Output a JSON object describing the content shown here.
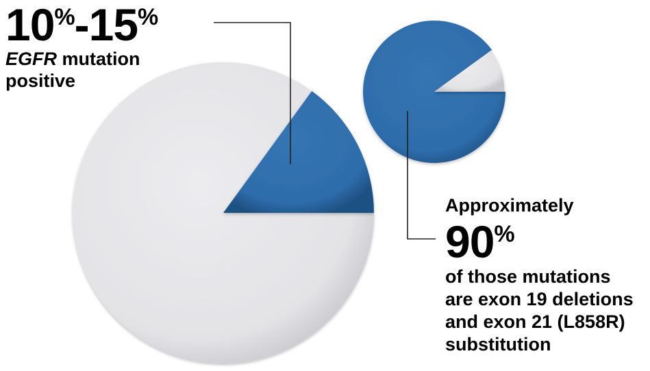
{
  "colors": {
    "blue": "#2f6fad",
    "blue_dark": "#1f5184",
    "gray": "#e5e5e8",
    "gray_dark": "#c9c9ce",
    "line": "#222222"
  },
  "chart_data": [
    {
      "type": "pie",
      "title": "",
      "slices": [
        {
          "label": "EGFR mutation positive",
          "value": 15
        },
        {
          "label": "",
          "value": 85
        }
      ],
      "annotation": {
        "value": "10%-15%",
        "prefix": "10",
        "prefix_unit": "%",
        "suffix": "-15",
        "suffix_unit": "%",
        "gene": "EGFR",
        "line1_rest": " mutation",
        "line2": "positive"
      }
    },
    {
      "type": "pie",
      "title": "",
      "slices": [
        {
          "label": "exon 19 deletions and exon 21 (L858R) substitution",
          "value": 90
        },
        {
          "label": "",
          "value": 10
        }
      ],
      "annotation": {
        "pre": "Approximately",
        "value": "90",
        "unit": "%",
        "lines": [
          "of those mutations",
          "are exon 19 deletions",
          "and exon 21 (L858R)",
          "substitution"
        ]
      }
    }
  ]
}
